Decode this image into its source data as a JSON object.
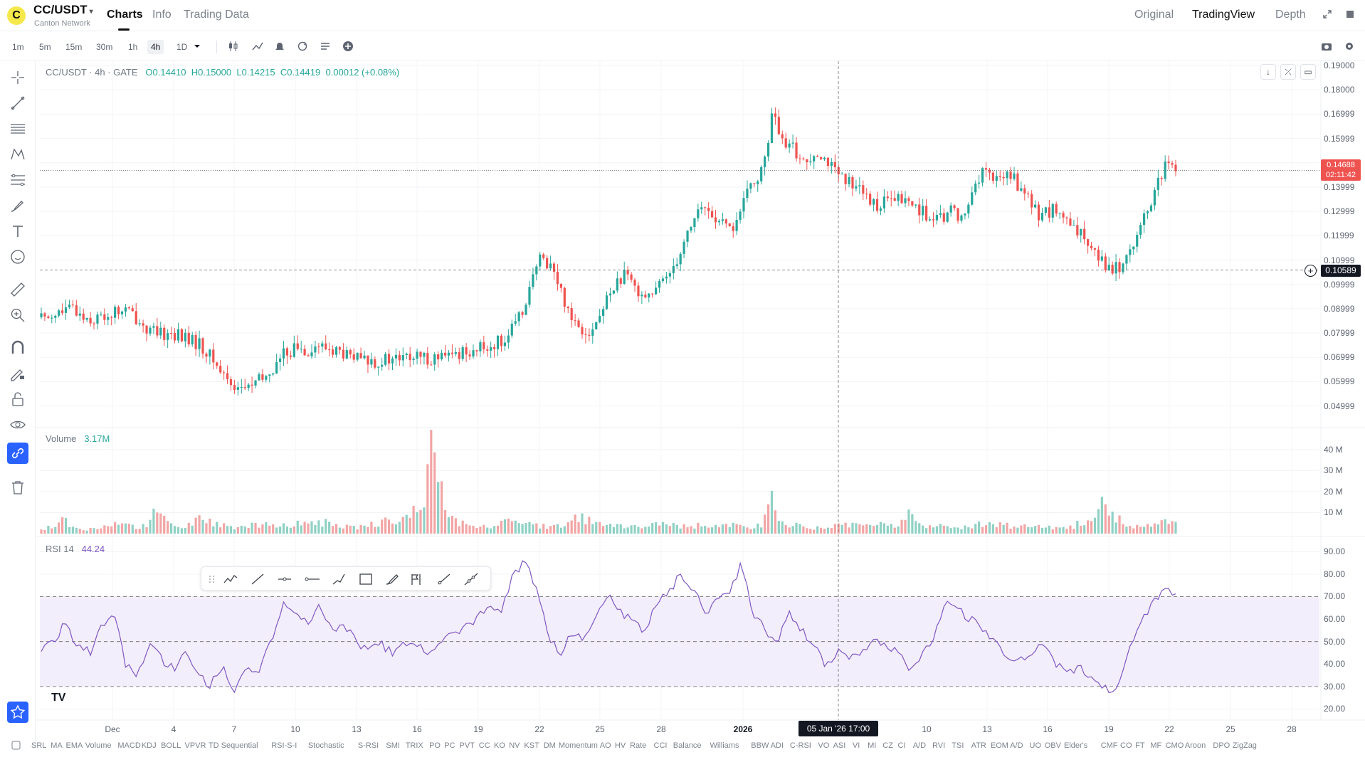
{
  "header": {
    "logo_letter": "C",
    "pair": "CC/USDT",
    "pair_caret": "▾",
    "pair_name": "Canton Network",
    "tabs": [
      "Charts",
      "Info",
      "Trading Data"
    ],
    "right_tabs": [
      "Original",
      "TradingView",
      "Depth"
    ],
    "expand_icon": "expand-icon",
    "fullscreen_icon": "stop-square-icon"
  },
  "toolbar": {
    "timeframes": [
      "1m",
      "5m",
      "15m",
      "30m",
      "1h",
      "4h",
      "1D"
    ],
    "active_timeframe": "4h",
    "icons": [
      "candle-type-icon",
      "indicators-icon",
      "alert-icon",
      "replay-icon",
      "settings-list-icon",
      "add-icon"
    ],
    "right_icons": [
      "camera-icon",
      "gear-icon"
    ]
  },
  "legend": {
    "symbol": "CC/USDT · 4h · GATE",
    "open": "O0.14410",
    "high": "H0.15000",
    "low": "L0.14215",
    "close": "C0.14419",
    "change": "0.00012 (+0.08%)"
  },
  "volume_legend": {
    "label": "Volume",
    "value": "3.17M"
  },
  "rsi_legend": {
    "label": "RSI 14",
    "value": "44.24"
  },
  "price_axis": [
    "0.19000",
    "0.18000",
    "0.16999",
    "0.15999",
    "0.14999",
    "0.13999",
    "0.12999",
    "0.11999",
    "0.10999",
    "0.09999",
    "0.08999",
    "0.07999",
    "0.06999",
    "0.05999",
    "0.04999"
  ],
  "volume_axis": [
    "40 M",
    "30 M",
    "20 M",
    "10 M"
  ],
  "rsi_axis": [
    "90.00",
    "80.00",
    "70.00",
    "60.00",
    "50.00",
    "40.00",
    "30.00",
    "20.00"
  ],
  "last_price": {
    "value": "0.14688",
    "countdown": "02:11:42"
  },
  "crosshair_price": "0.10589",
  "crosshair_time": "05 Jan '26   17:00",
  "x_axis": [
    "Dec",
    "4",
    "7",
    "10",
    "13",
    "16",
    "19",
    "22",
    "25",
    "28",
    "2026",
    "13",
    "16",
    "19",
    "22",
    "25",
    "28"
  ],
  "x_axis_extra": "10",
  "indicators": [
    "SRL",
    "MA",
    "EMA",
    "Volume",
    "MACD",
    "KDJ",
    "BOLL",
    "VPVR",
    "TD Sequential",
    "RSI-S-I",
    "Stochastic",
    "S-RSI",
    "SMI",
    "TRIX",
    "PO",
    "PC",
    "PVT",
    "CC",
    "KO",
    "NV",
    "KST",
    "DM",
    "Momentum",
    "AO",
    "HV",
    "Rate",
    "CCI",
    "Balance",
    "Williams",
    "BBW",
    "ADI",
    "C-RSI",
    "VO",
    "ASI",
    "VI",
    "MI",
    "CZ",
    "CI",
    "A/D",
    "RVI",
    "TSI",
    "ATR",
    "EOM",
    "A/D",
    "UO",
    "OBV",
    "Elder's",
    "CMF",
    "CO",
    "FT",
    "MF",
    "CMO",
    "Aroon",
    "DPO",
    "ZigZag"
  ],
  "left_tools": [
    "crosshair-icon",
    "trend-line-icon",
    "horizontal-lines-icon",
    "pattern-icon",
    "fib-icon",
    "brush-icon",
    "text-icon",
    "emoji-icon",
    "ruler-icon",
    "zoom-in-icon",
    "magnet-icon",
    "pencil-lock-icon",
    "lock-icon",
    "eye-icon",
    "link-icon",
    "trash-icon",
    "star-icon"
  ],
  "drawing_bar_icons": [
    "drag-handle-icon",
    "zigzag-icon",
    "line-icon",
    "horizontal-ray-icon",
    "horizontal-line-icon",
    "path-icon",
    "rectangle-icon",
    "brush-icon",
    "flag-icon",
    "ray-icon",
    "extended-line-icon"
  ],
  "tv_logo": "TV",
  "chart_data": {
    "type": "candlestick",
    "symbol": "CC/USDT",
    "interval": "4h",
    "exchange": "GATE",
    "ylim": [
      0.045,
      0.19
    ],
    "price_path": [
      0.0865,
      0.088,
      0.0885,
      0.09,
      0.087,
      0.0855,
      0.087,
      0.0885,
      0.0895,
      0.086,
      0.0815,
      0.079,
      0.08,
      0.079,
      0.077,
      0.075,
      0.07,
      0.064,
      0.059,
      0.057,
      0.059,
      0.061,
      0.066,
      0.072,
      0.074,
      0.073,
      0.0745,
      0.0735,
      0.0725,
      0.07,
      0.069,
      0.0685,
      0.0685,
      0.069,
      0.0695,
      0.07,
      0.0695,
      0.07,
      0.0695,
      0.071,
      0.073,
      0.073,
      0.074,
      0.076,
      0.079,
      0.085,
      0.098,
      0.11,
      0.109,
      0.097,
      0.087,
      0.082,
      0.081,
      0.09,
      0.1,
      0.103,
      0.099,
      0.096,
      0.097,
      0.104,
      0.111,
      0.122,
      0.131,
      0.13,
      0.125,
      0.122,
      0.13,
      0.142,
      0.146,
      0.171,
      0.156,
      0.156,
      0.149,
      0.156,
      0.152,
      0.145,
      0.141,
      0.143,
      0.133,
      0.133,
      0.134,
      0.135,
      0.133,
      0.131,
      0.125,
      0.127,
      0.131,
      0.126,
      0.142,
      0.147,
      0.142,
      0.146,
      0.142,
      0.135,
      0.129,
      0.13,
      0.13,
      0.123,
      0.12,
      0.118,
      0.11,
      0.106,
      0.108,
      0.118,
      0.126,
      0.138,
      0.148,
      0.147
    ],
    "volume_m_path": [
      2,
      3,
      7,
      4,
      2,
      3,
      3,
      4,
      5,
      3,
      4,
      12,
      6,
      3,
      4,
      8,
      5,
      4,
      3,
      3,
      4,
      5,
      3,
      4,
      5,
      4,
      6,
      5,
      3,
      4,
      3,
      4,
      5,
      6,
      8,
      9,
      15,
      42,
      12,
      6,
      4,
      3,
      3,
      4,
      6,
      7,
      5,
      4,
      3,
      4,
      6,
      8,
      5,
      4,
      4,
      3,
      3,
      4,
      6,
      5,
      3,
      4,
      4,
      3,
      3,
      4,
      4,
      3,
      5,
      16,
      4,
      4,
      3,
      3,
      3,
      5,
      4,
      5,
      3,
      4,
      4,
      5,
      10,
      3,
      3,
      4,
      4,
      3,
      4,
      5,
      4,
      4,
      3,
      4,
      5,
      3,
      3,
      3,
      5,
      6,
      14,
      8,
      6,
      4,
      4,
      5,
      6,
      5
    ],
    "rsi14_path": [
      45,
      50,
      58,
      48,
      45,
      56,
      62,
      40,
      35,
      48,
      42,
      38,
      46,
      35,
      30,
      40,
      28,
      38,
      35,
      50,
      66,
      62,
      58,
      66,
      55,
      58,
      52,
      45,
      50,
      45,
      48,
      48,
      46,
      50,
      54,
      55,
      60,
      65,
      62,
      78,
      86,
      75,
      52,
      45,
      55,
      50,
      62,
      72,
      64,
      58,
      55,
      68,
      72,
      80,
      74,
      62,
      70,
      72,
      84,
      62,
      55,
      50,
      62,
      55,
      48,
      40,
      45,
      42,
      44,
      50,
      48,
      46,
      38,
      45,
      52,
      68,
      64,
      60,
      56,
      50,
      44,
      42,
      45,
      48,
      40,
      36,
      38,
      35,
      30,
      28,
      45,
      58,
      66,
      74,
      70
    ],
    "rsi_bands": [
      30,
      50,
      70
    ],
    "last_price": 0.14688,
    "crosshair_price": 0.10589,
    "volume_ylim": [
      0,
      45
    ],
    "rsi_ylim": [
      18,
      92
    ],
    "colors": {
      "up": "#26a69a",
      "down": "#ef5350",
      "rsi": "#7e57c2",
      "band_fill": "#f3eefb"
    }
  }
}
